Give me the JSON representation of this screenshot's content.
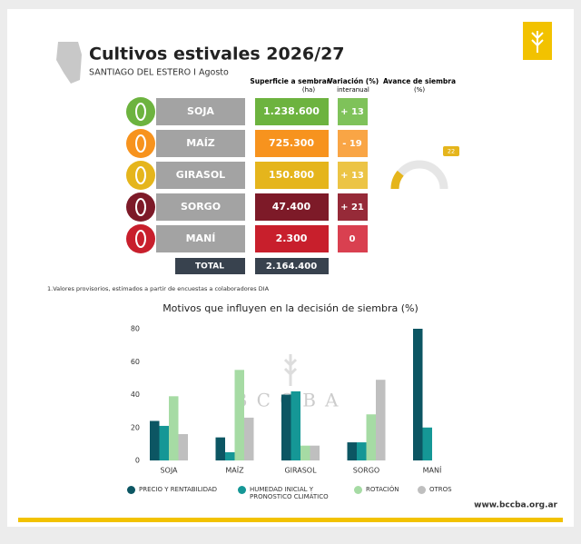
{
  "header": {
    "title": "Cultivos estivales 2026/27",
    "subtitle": "SANTIAGO DEL ESTERO I Agosto"
  },
  "table": {
    "headers": {
      "surface": "Superficie a sembrar¹",
      "surface_unit": "(ha)",
      "variation": "Variación (%)",
      "variation_sub": "interanual",
      "progress": "Avance de siembra",
      "progress_unit": "(%)"
    },
    "rows": [
      {
        "crop": "SOJA",
        "surface": "1.238.600",
        "variation": "+ 13",
        "color": "#6db33f",
        "light": "#7fc25a"
      },
      {
        "crop": "MAÍZ",
        "surface": "725.300",
        "variation": "- 19",
        "color": "#f7931e",
        "light": "#f9a545"
      },
      {
        "crop": "GIRASOL",
        "surface": "150.800",
        "variation": "+ 13",
        "color": "#e5b51c",
        "light": "#ecc445"
      },
      {
        "crop": "SORGO",
        "surface": "47.400",
        "variation": "+ 21",
        "color": "#7d1a28",
        "light": "#962a38"
      },
      {
        "crop": "MANÍ",
        "surface": "2.300",
        "variation": "0",
        "color": "#c81f2c",
        "light": "#d94050"
      }
    ],
    "total_label": "TOTAL",
    "total": "2.164.400"
  },
  "progress": {
    "value": 22,
    "max": 100,
    "color": "#e5b51c"
  },
  "footnote": "1.Valores provisorios, estimados a partir de encuestas a colaboradores DIA",
  "chart_data": {
    "type": "bar",
    "title": "Motivos que influyen en la decisión de siembra (%)",
    "categories": [
      "SOJA",
      "MAÍZ",
      "GIRASOL",
      "SORGO",
      "MANÍ"
    ],
    "series": [
      {
        "name": "PRECIO Y RENTABILIDAD",
        "color": "#0c5663",
        "values": [
          24,
          14,
          40,
          11,
          80
        ]
      },
      {
        "name": "HUMEDAD INICIAL Y PRONOSTICO CLIMÁTICO",
        "color": "#159796",
        "values": [
          21,
          5,
          42,
          11,
          20
        ]
      },
      {
        "name": "ROTACIÓN",
        "color": "#a6dba4",
        "values": [
          39,
          55,
          9,
          28,
          0
        ]
      },
      {
        "name": "OTROS",
        "color": "#bfbfbf",
        "values": [
          16,
          26,
          9,
          49,
          0
        ]
      }
    ],
    "ylim": [
      0,
      80
    ],
    "yticks": [
      0,
      20,
      40,
      60,
      80
    ],
    "grid": false
  },
  "watermark": "BCCBA",
  "footer": "www.bccba.org.ar"
}
